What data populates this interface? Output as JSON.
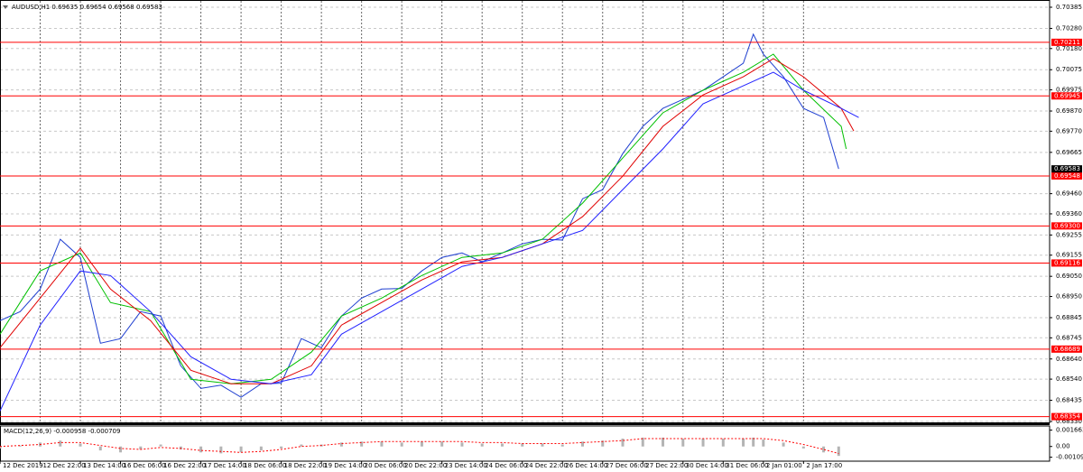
{
  "chart_data": [
    {
      "type": "line",
      "title": "AUDUSD,H1 0.69635 0.69654 0.69568 0.69583",
      "xlim": [
        0,
        418
      ],
      "xticks": [
        {
          "value": 0,
          "label": "12 Dec 2019"
        },
        {
          "value": 16,
          "label": "12 Dec 22:00"
        },
        {
          "value": 32,
          "label": "13 Dec 14:00"
        },
        {
          "value": 48,
          "label": "16 Dec 06:00"
        },
        {
          "value": 64,
          "label": "16 Dec 22:00"
        },
        {
          "value": 80,
          "label": "17 Dec 14:00"
        },
        {
          "value": 96,
          "label": "18 Dec 06:00"
        },
        {
          "value": 112,
          "label": "18 Dec 22:00"
        },
        {
          "value": 128,
          "label": "19 Dec 14:00"
        },
        {
          "value": 144,
          "label": "20 Dec 06:00"
        },
        {
          "value": 160,
          "label": "20 Dec 22:00"
        },
        {
          "value": 176,
          "label": "23 Dec 14:00"
        },
        {
          "value": 192,
          "label": "24 Dec 06:00"
        },
        {
          "value": 208,
          "label": "24 Dec 22:00"
        },
        {
          "value": 224,
          "label": "26 Dec 14:00"
        },
        {
          "value": 240,
          "label": "27 Dec 06:00"
        },
        {
          "value": 256,
          "label": "27 Dec 22:00"
        },
        {
          "value": 272,
          "label": "30 Dec 14:00"
        },
        {
          "value": 288,
          "label": "31 Dec 06:00"
        },
        {
          "value": 304,
          "label": "2 Jan 01:00"
        },
        {
          "value": 320,
          "label": "2 Jan 17:00"
        }
      ],
      "ylim": [
        0.6833,
        0.70385
      ],
      "yticks": [
        0.70385,
        {
          "value": 0.7028,
          "label": "0.70280"
        },
        {
          "value": 0.7018,
          "label": "0.70180"
        },
        0.70075,
        0.69975,
        {
          "value": 0.6987,
          "label": "0.69870"
        },
        {
          "value": 0.6977,
          "label": "0.69770"
        },
        0.69665,
        {
          "value": 0.6946,
          "label": "0.69460"
        },
        {
          "value": 0.6936,
          "label": "0.69360"
        },
        0.69255,
        0.69155,
        {
          "value": 0.6905,
          "label": "0.69050"
        },
        {
          "value": 0.6895,
          "label": "0.68950"
        },
        0.68845,
        0.68745,
        {
          "value": 0.6864,
          "label": "0.68640"
        },
        {
          "value": 0.6854,
          "label": "0.68540"
        },
        0.68435,
        {
          "value": 0.6833,
          "label": "0.68330"
        }
      ],
      "grid": true,
      "series": [
        {
          "color": "#1f3fd0",
          "x": [
            0,
            8,
            16,
            24,
            32,
            40,
            48,
            56,
            64,
            72,
            80,
            88,
            96,
            104,
            112,
            120,
            128,
            136,
            144,
            152,
            160,
            168,
            176,
            184,
            192,
            200,
            208,
            216,
            224,
            232,
            240,
            248,
            256,
            264,
            272,
            280,
            288,
            296,
            300,
            304,
            312,
            320,
            328,
            334
          ],
          "values": [
            0.6883,
            0.68875,
            0.68987,
            0.69234,
            0.69144,
            0.68718,
            0.68741,
            0.68875,
            0.68853,
            0.68606,
            0.68494,
            0.6851,
            0.6845,
            0.68517,
            0.6852,
            0.68741,
            0.68696,
            0.68853,
            0.68942,
            0.68987,
            0.6899,
            0.69077,
            0.69144,
            0.69166,
            0.69122,
            0.69166,
            0.69211,
            0.69234,
            0.6923,
            0.69435,
            0.6948,
            0.69659,
            0.69794,
            0.69883,
            0.69928,
            0.69973,
            0.7004,
            0.70107,
            0.70251,
            0.70152,
            0.7004,
            0.69883,
            0.69838,
            0.69583
          ]
        },
        {
          "color": "#00c000",
          "x": [
            0,
            16,
            32,
            44,
            60,
            76,
            92,
            108,
            124,
            136,
            152,
            168,
            184,
            200,
            216,
            232,
            248,
            264,
            280,
            296,
            308,
            320,
            335,
            337
          ],
          "values": [
            0.68763,
            0.69077,
            0.69166,
            0.6892,
            0.68875,
            0.68539,
            0.68517,
            0.68539,
            0.68674,
            0.68853,
            0.68942,
            0.69054,
            0.69144,
            0.69166,
            0.69234,
            0.69413,
            0.69637,
            0.69861,
            0.69973,
            0.70062,
            0.70152,
            0.69973,
            0.69794,
            0.69682
          ]
        },
        {
          "color": "#e00000",
          "x": [
            0,
            16,
            32,
            44,
            60,
            76,
            92,
            108,
            124,
            136,
            152,
            168,
            184,
            200,
            216,
            232,
            248,
            264,
            280,
            296,
            308,
            320,
            335,
            340
          ],
          "values": [
            0.68696,
            0.68942,
            0.69189,
            0.68987,
            0.6883,
            0.68584,
            0.68517,
            0.68517,
            0.68606,
            0.68808,
            0.6892,
            0.69032,
            0.69122,
            0.69144,
            0.69211,
            0.69346,
            0.69547,
            0.69794,
            0.6995,
            0.7004,
            0.7013,
            0.7004,
            0.69883,
            0.69771
          ]
        },
        {
          "color": "#2020ff",
          "x": [
            0,
            16,
            32,
            44,
            60,
            76,
            92,
            108,
            124,
            136,
            152,
            168,
            184,
            200,
            216,
            232,
            248,
            264,
            280,
            296,
            308,
            320,
            335,
            342
          ],
          "values": [
            0.68382,
            0.68808,
            0.69077,
            0.69054,
            0.68875,
            0.68651,
            0.68539,
            0.68517,
            0.68562,
            0.68763,
            0.68875,
            0.68987,
            0.69099,
            0.69144,
            0.69211,
            0.69278,
            0.6948,
            0.69682,
            0.69906,
            0.69995,
            0.70062,
            0.69973,
            0.69883,
            0.69838
          ]
        }
      ],
      "levels": [
        0.70211,
        0.69945,
        0.69548,
        {
          "value": 0.693,
          "label": "0.69300"
        },
        0.69116,
        0.68689,
        0.68354
      ],
      "level_color": "#ff0000",
      "last_price": 0.69583
    },
    {
      "type": "bar",
      "title": "MACD(12,26,9) -0.000958 -0.000709",
      "x": [
        0,
        8,
        16,
        24,
        32,
        40,
        48,
        56,
        64,
        72,
        80,
        88,
        96,
        104,
        112,
        120,
        128,
        136,
        144,
        152,
        160,
        168,
        176,
        184,
        192,
        200,
        208,
        216,
        224,
        232,
        240,
        248,
        256,
        264,
        272,
        280,
        288,
        296,
        300,
        304,
        312,
        320,
        328,
        334
      ],
      "xlim": [
        0,
        418
      ],
      "ylim": [
        -0.0014,
        0.0019
      ],
      "yticks": [
        0.001663,
        {
          "value": 0,
          "label": "0.00"
        },
        -0.001091
      ],
      "series": [
        {
          "color": "#b4b4b4",
          "values": [
            -0.0002,
            0.0001,
            0.0004,
            0.0006,
            0.0003,
            -0.0004,
            -0.0006,
            -0.0003,
            0.0002,
            -0.0003,
            -0.0006,
            -0.0007,
            -0.0006,
            -0.0004,
            -0.0002,
            0.0002,
            0.0002,
            0.0004,
            0.0005,
            0.0005,
            0.0004,
            0.0005,
            0.0005,
            0.0004,
            0.0003,
            0.0003,
            0.0003,
            0.0003,
            0.0002,
            0.0005,
            0.0006,
            0.0008,
            0.0009,
            0.0009,
            0.0008,
            0.0008,
            0.0008,
            0.0008,
            0.0009,
            0.0007,
            0.0004,
            -0.0002,
            -0.0006,
            -0.000958
          ]
        },
        {
          "color": "#ff0000",
          "kind": "line",
          "values": [
            0.0,
            0.0001,
            0.0002,
            0.0004,
            0.0004,
            0.0001,
            -0.0002,
            -0.0003,
            -0.0001,
            -0.0002,
            -0.0004,
            -0.0005,
            -0.0006,
            -0.0005,
            -0.0003,
            0.0,
            0.0001,
            0.0003,
            0.0004,
            0.0005,
            0.0005,
            0.0005,
            0.0005,
            0.0005,
            0.0004,
            0.0004,
            0.0003,
            0.0003,
            0.0003,
            0.0004,
            0.0005,
            0.0006,
            0.0008,
            0.0008,
            0.0008,
            0.0008,
            0.0008,
            0.0008,
            0.0008,
            0.0008,
            0.0006,
            0.0002,
            -0.0003,
            -0.000709
          ]
        }
      ]
    }
  ]
}
